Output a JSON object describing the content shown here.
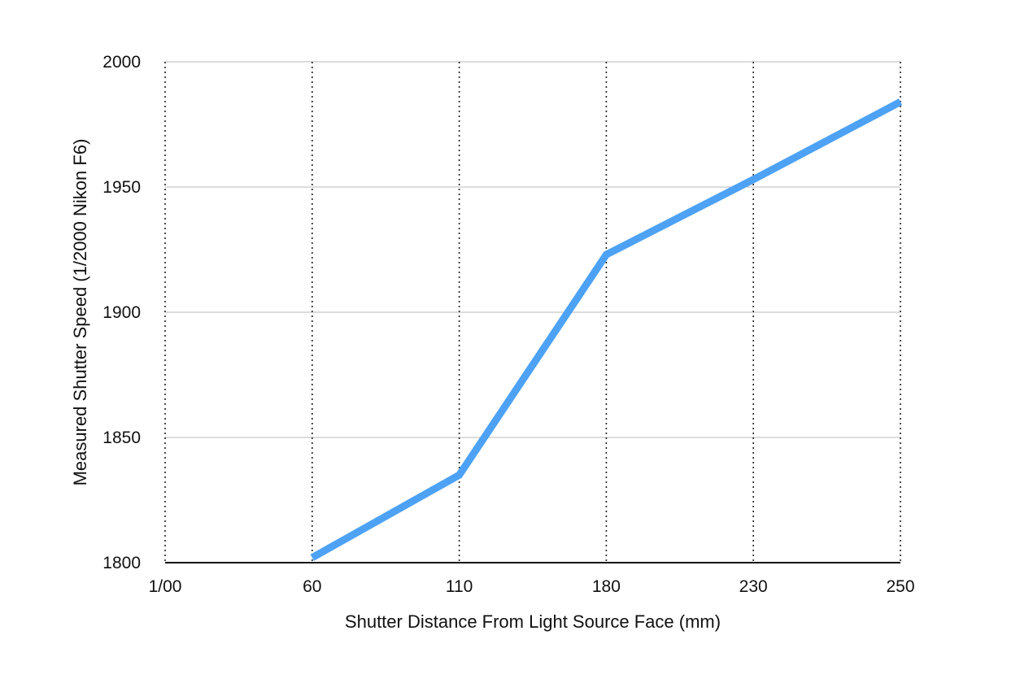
{
  "chart_data": {
    "type": "line",
    "title": "",
    "xlabel": "Shutter Distance From Light Source Face (mm)",
    "ylabel": "Measured Shutter Speed (1/2000 Nikon F6)",
    "categories": [
      "1/00",
      "60",
      "110",
      "180",
      "230",
      "250"
    ],
    "ylim": [
      1800,
      2000
    ],
    "yticks": [
      "1800",
      "1850",
      "1900",
      "1950",
      "2000"
    ],
    "grid": {
      "horizontal": true,
      "vertical": "dotted"
    },
    "series": [
      {
        "color": "#4da2f5",
        "x": [
          "60",
          "110",
          "180",
          "230",
          "250"
        ],
        "values": [
          1802,
          1835,
          1923,
          1953,
          1984
        ]
      }
    ]
  }
}
